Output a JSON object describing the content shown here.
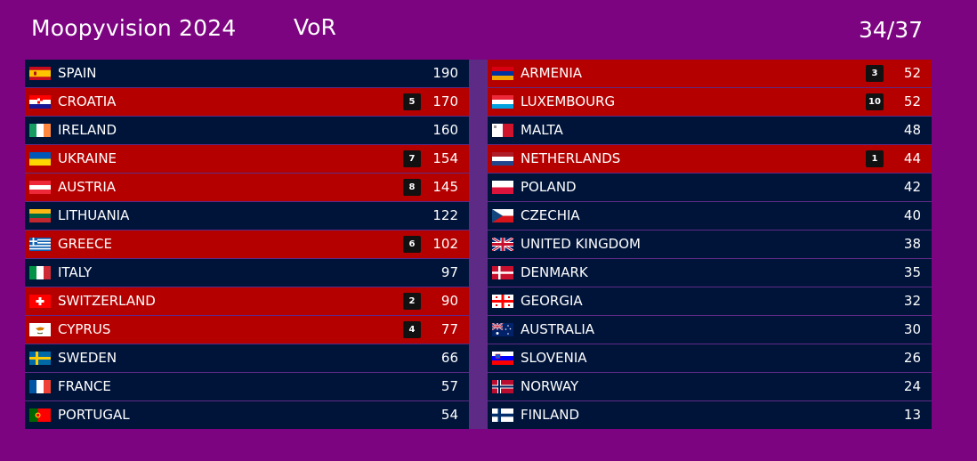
{
  "header": {
    "title": "Moopyvision 2024",
    "subtitle": "VoR",
    "progress": "34/37"
  },
  "left": [
    {
      "name": "SPAIN",
      "points": "",
      "score": "190",
      "flag": "spain-flag-icon"
    },
    {
      "name": "CROATIA",
      "points": "5",
      "score": "170",
      "flag": "croatia-flag-icon"
    },
    {
      "name": "IRELAND",
      "points": "",
      "score": "160",
      "flag": "ireland-flag-icon"
    },
    {
      "name": "UKRAINE",
      "points": "7",
      "score": "154",
      "flag": "ukraine-flag-icon"
    },
    {
      "name": "AUSTRIA",
      "points": "8",
      "score": "145",
      "flag": "austria-flag-icon"
    },
    {
      "name": "LITHUANIA",
      "points": "",
      "score": "122",
      "flag": "lithuania-flag-icon"
    },
    {
      "name": "GREECE",
      "points": "6",
      "score": "102",
      "flag": "greece-flag-icon"
    },
    {
      "name": "ITALY",
      "points": "",
      "score": "97",
      "flag": "italy-flag-icon"
    },
    {
      "name": "SWITZERLAND",
      "points": "2",
      "score": "90",
      "flag": "switzerland-flag-icon"
    },
    {
      "name": "CYPRUS",
      "points": "4",
      "score": "77",
      "flag": "cyprus-flag-icon"
    },
    {
      "name": "SWEDEN",
      "points": "",
      "score": "66",
      "flag": "sweden-flag-icon"
    },
    {
      "name": "FRANCE",
      "points": "",
      "score": "57",
      "flag": "france-flag-icon"
    },
    {
      "name": "PORTUGAL",
      "points": "",
      "score": "54",
      "flag": "portugal-flag-icon"
    }
  ],
  "right": [
    {
      "name": "ARMENIA",
      "points": "3",
      "score": "52",
      "flag": "armenia-flag-icon"
    },
    {
      "name": "LUXEMBOURG",
      "points": "10",
      "score": "52",
      "flag": "luxembourg-flag-icon"
    },
    {
      "name": "MALTA",
      "points": "",
      "score": "48",
      "flag": "malta-flag-icon"
    },
    {
      "name": "NETHERLANDS",
      "points": "1",
      "score": "44",
      "flag": "netherlands-flag-icon"
    },
    {
      "name": "POLAND",
      "points": "",
      "score": "42",
      "flag": "poland-flag-icon"
    },
    {
      "name": "CZECHIA",
      "points": "",
      "score": "40",
      "flag": "czechia-flag-icon"
    },
    {
      "name": "UNITED KINGDOM",
      "points": "",
      "score": "38",
      "flag": "united-kingdom-flag-icon"
    },
    {
      "name": "DENMARK",
      "points": "",
      "score": "35",
      "flag": "denmark-flag-icon"
    },
    {
      "name": "GEORGIA",
      "points": "",
      "score": "32",
      "flag": "georgia-flag-icon"
    },
    {
      "name": "AUSTRALIA",
      "points": "",
      "score": "30",
      "flag": "australia-flag-icon"
    },
    {
      "name": "SLOVENIA",
      "points": "",
      "score": "26",
      "flag": "slovenia-flag-icon"
    },
    {
      "name": "NORWAY",
      "points": "",
      "score": "24",
      "flag": "norway-flag-icon"
    },
    {
      "name": "FINLAND",
      "points": "",
      "score": "13",
      "flag": "finland-flag-icon"
    }
  ],
  "colors": {
    "background": "#7c0481",
    "row": "#00143a",
    "row_voted": "#b50000",
    "points_badge": "#111111"
  }
}
